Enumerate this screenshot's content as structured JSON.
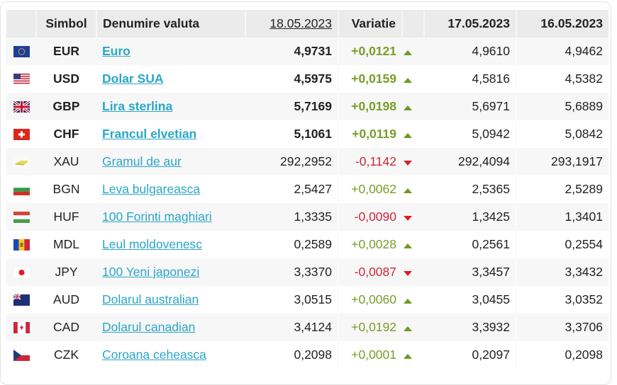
{
  "table": {
    "headers": {
      "flag": "",
      "symbol": "Simbol",
      "name": "Denumire valuta",
      "date1": "18.05.2023",
      "variation": "Variatie",
      "arrow": "",
      "date2": "17.05.2023",
      "date3": "16.05.2023"
    },
    "colors": {
      "up": "#7a9c2a",
      "down": "#d0263a",
      "link": "#2aa6c9"
    },
    "rows": [
      {
        "flag": "eu-flag-icon",
        "symbol": "EUR",
        "name": "Euro",
        "rate1": "4,9731",
        "variation": "+0,0121",
        "trend": "up",
        "rate2": "4,9610",
        "rate3": "4,9462",
        "major": true
      },
      {
        "flag": "us-flag-icon",
        "symbol": "USD",
        "name": "Dolar SUA",
        "rate1": "4,5975",
        "variation": "+0,0159",
        "trend": "up",
        "rate2": "4,5816",
        "rate3": "4,5382",
        "major": true
      },
      {
        "flag": "uk-flag-icon",
        "symbol": "GBP",
        "name": "Lira sterlina",
        "rate1": "5,7169",
        "variation": "+0,0198",
        "trend": "up",
        "rate2": "5,6971",
        "rate3": "5,6889",
        "major": true
      },
      {
        "flag": "ch-flag-icon",
        "symbol": "CHF",
        "name": "Francul elvetian",
        "rate1": "5,1061",
        "variation": "+0,0119",
        "trend": "up",
        "rate2": "5,0942",
        "rate3": "5,0842",
        "major": true
      },
      {
        "flag": "gold-bar-icon",
        "symbol": "XAU",
        "name": "Gramul de aur",
        "rate1": "292,2952",
        "variation": "-0,1142",
        "trend": "down",
        "rate2": "292,4094",
        "rate3": "293,1917",
        "major": false
      },
      {
        "flag": "bg-flag-icon",
        "symbol": "BGN",
        "name": "Leva bulgareasca",
        "rate1": "2,5427",
        "variation": "+0,0062",
        "trend": "up",
        "rate2": "2,5365",
        "rate3": "2,5289",
        "major": false
      },
      {
        "flag": "hu-flag-icon",
        "symbol": "HUF",
        "name": "100 Forinti maghiari",
        "rate1": "1,3335",
        "variation": "-0,0090",
        "trend": "down",
        "rate2": "1,3425",
        "rate3": "1,3401",
        "major": false
      },
      {
        "flag": "md-flag-icon",
        "symbol": "MDL",
        "name": "Leul moldovenesc",
        "rate1": "0,2589",
        "variation": "+0,0028",
        "trend": "up",
        "rate2": "0,2561",
        "rate3": "0,2554",
        "major": false
      },
      {
        "flag": "jp-flag-icon",
        "symbol": "JPY",
        "name": "100 Yeni japonezi",
        "rate1": "3,3370",
        "variation": "-0,0087",
        "trend": "down",
        "rate2": "3,3457",
        "rate3": "3,3432",
        "major": false
      },
      {
        "flag": "au-flag-icon",
        "symbol": "AUD",
        "name": "Dolarul australian",
        "rate1": "3,0515",
        "variation": "+0,0060",
        "trend": "up",
        "rate2": "3,0455",
        "rate3": "3,0352",
        "major": false
      },
      {
        "flag": "ca-flag-icon",
        "symbol": "CAD",
        "name": "Dolarul canadian",
        "rate1": "3,4124",
        "variation": "+0,0192",
        "trend": "up",
        "rate2": "3,3932",
        "rate3": "3,3706",
        "major": false
      },
      {
        "flag": "cz-flag-icon",
        "symbol": "CZK",
        "name": "Coroana ceheasca",
        "rate1": "0,2098",
        "variation": "+0,0001",
        "trend": "up",
        "rate2": "0,2097",
        "rate3": "0,2098",
        "major": false
      }
    ]
  }
}
